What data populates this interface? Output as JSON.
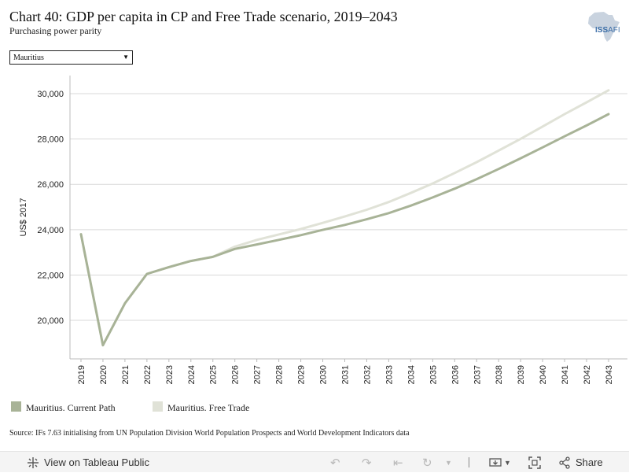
{
  "header": {
    "title": "Chart 40: GDP per capita in CP and Free Trade scenario, 2019–2043",
    "subtitle": "Purchasing power parity"
  },
  "logo": {
    "text_primary": "ISS",
    "text_secondary": "AFI"
  },
  "filter": {
    "selected": "Mauritius"
  },
  "chart_data": {
    "type": "line",
    "title": "",
    "xlabel": "",
    "ylabel": "US$ 2017",
    "ylim": [
      18300,
      30800
    ],
    "yticks": [
      20000,
      22000,
      24000,
      26000,
      28000,
      30000
    ],
    "ytick_labels": [
      "20,000",
      "22,000",
      "24,000",
      "26,000",
      "28,000",
      "30,000"
    ],
    "x": [
      "2019",
      "2020",
      "2021",
      "2022",
      "2023",
      "2024",
      "2025",
      "2026",
      "2027",
      "2028",
      "2029",
      "2030",
      "2031",
      "2032",
      "2033",
      "2034",
      "2035",
      "2036",
      "2037",
      "2038",
      "2039",
      "2040",
      "2041",
      "2042",
      "2043"
    ],
    "grid": true,
    "legend_placement": "bottom-left",
    "series": [
      {
        "name": "Mauritius. Current Path",
        "color": "#a8b397",
        "values": [
          23800,
          18900,
          20750,
          22050,
          22350,
          22620,
          22800,
          23150,
          23350,
          23550,
          23760,
          23990,
          24210,
          24460,
          24730,
          25060,
          25420,
          25810,
          26230,
          26680,
          27150,
          27630,
          28120,
          28600,
          29100
        ]
      },
      {
        "name": "Mauritius. Free Trade",
        "color": "#e0e2d7",
        "values": [
          23800,
          18900,
          20750,
          22050,
          22350,
          22620,
          22800,
          23250,
          23550,
          23790,
          24030,
          24300,
          24580,
          24880,
          25220,
          25620,
          26040,
          26500,
          26980,
          27490,
          28010,
          28550,
          29100,
          29620,
          30150
        ]
      }
    ]
  },
  "source": "Source: IFs 7.63 initialising from UN Population Division World Population Prospects and World Development Indicators data",
  "toolbar": {
    "view_label": "View on Tableau Public",
    "share_label": "Share"
  }
}
